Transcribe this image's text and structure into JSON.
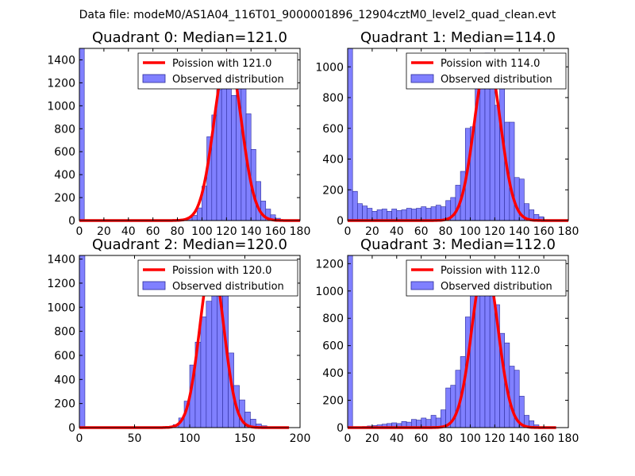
{
  "suptitle": "Data file: modeM0/AS1A04_116T01_9000001896_12904cztM0_level2_quad_clean.evt",
  "colors": {
    "bars": "#8080ff",
    "bar_edge": "#2a2a9a",
    "curve": "#ff0000"
  },
  "chart_data": [
    {
      "type": "bar",
      "title": "Quadrant 0: Median=121.0",
      "legend": [
        "Poission with 121.0",
        "Observed distribution"
      ],
      "legend_position": "top-right",
      "xlim": [
        0,
        180
      ],
      "ylim": [
        0,
        1500
      ],
      "xticks": [
        0,
        20,
        40,
        60,
        80,
        100,
        120,
        140,
        160,
        180
      ],
      "yticks": [
        0,
        200,
        400,
        600,
        800,
        1000,
        1200,
        1400
      ],
      "bin_width": 4,
      "bins": [
        [
          0,
          1500
        ],
        [
          88,
          25
        ],
        [
          92,
          45
        ],
        [
          96,
          110
        ],
        [
          100,
          300
        ],
        [
          104,
          730
        ],
        [
          108,
          920
        ],
        [
          112,
          1140
        ],
        [
          116,
          1210
        ],
        [
          120,
          1460
        ],
        [
          124,
          1090
        ],
        [
          128,
          1390
        ],
        [
          132,
          1170
        ],
        [
          136,
          930
        ],
        [
          140,
          620
        ],
        [
          144,
          340
        ],
        [
          148,
          170
        ],
        [
          152,
          100
        ],
        [
          156,
          50
        ],
        [
          160,
          20
        ]
      ],
      "poisson": {
        "lambda": 121.0,
        "peak": 1450,
        "x_range": [
          0,
          180
        ]
      }
    },
    {
      "type": "bar",
      "title": "Quadrant 1: Median=114.0",
      "legend": [
        "Poission with 114.0",
        "Observed distribution"
      ],
      "legend_position": "top-right",
      "xlim": [
        0,
        180
      ],
      "ylim": [
        0,
        1120
      ],
      "xticks": [
        0,
        20,
        40,
        60,
        80,
        100,
        120,
        140,
        160,
        180
      ],
      "yticks": [
        0,
        200,
        400,
        600,
        800,
        1000
      ],
      "bin_width": 4,
      "bins": [
        [
          0,
          1120
        ],
        [
          0,
          200
        ],
        [
          4,
          190
        ],
        [
          8,
          110
        ],
        [
          12,
          95
        ],
        [
          16,
          80
        ],
        [
          20,
          60
        ],
        [
          24,
          70
        ],
        [
          28,
          75
        ],
        [
          32,
          60
        ],
        [
          36,
          75
        ],
        [
          40,
          65
        ],
        [
          44,
          70
        ],
        [
          48,
          80
        ],
        [
          52,
          75
        ],
        [
          56,
          80
        ],
        [
          60,
          90
        ],
        [
          64,
          80
        ],
        [
          68,
          90
        ],
        [
          72,
          100
        ],
        [
          76,
          90
        ],
        [
          80,
          130
        ],
        [
          84,
          150
        ],
        [
          88,
          230
        ],
        [
          92,
          320
        ],
        [
          96,
          600
        ],
        [
          100,
          610
        ],
        [
          104,
          870
        ],
        [
          108,
          1000
        ],
        [
          112,
          1090
        ],
        [
          116,
          920
        ],
        [
          120,
          750
        ],
        [
          124,
          930
        ],
        [
          128,
          640
        ],
        [
          132,
          640
        ],
        [
          136,
          280
        ],
        [
          140,
          270
        ],
        [
          144,
          110
        ],
        [
          148,
          70
        ],
        [
          152,
          40
        ],
        [
          156,
          25
        ]
      ],
      "poisson": {
        "lambda": 114.0,
        "peak": 1050,
        "x_range": [
          0,
          180
        ]
      }
    },
    {
      "type": "bar",
      "title": "Quadrant 2: Median=120.0",
      "legend": [
        "Poission with 120.0",
        "Observed distribution"
      ],
      "legend_position": "top-right",
      "xlim": [
        0,
        200
      ],
      "ylim": [
        0,
        1430
      ],
      "xticks": [
        0,
        50,
        100,
        150,
        200
      ],
      "yticks": [
        0,
        200,
        400,
        600,
        800,
        1000,
        1200,
        1400
      ],
      "bin_width": 5,
      "bins": [
        [
          0,
          1430
        ],
        [
          80,
          10
        ],
        [
          85,
          25
        ],
        [
          90,
          80
        ],
        [
          95,
          220
        ],
        [
          100,
          520
        ],
        [
          105,
          710
        ],
        [
          110,
          920
        ],
        [
          115,
          1050
        ],
        [
          120,
          1340
        ],
        [
          125,
          1210
        ],
        [
          130,
          1140
        ],
        [
          135,
          620
        ],
        [
          140,
          350
        ],
        [
          145,
          230
        ],
        [
          150,
          130
        ],
        [
          155,
          70
        ],
        [
          160,
          30
        ],
        [
          165,
          15
        ]
      ],
      "poisson": {
        "lambda": 120.0,
        "peak": 1370,
        "x_range": [
          0,
          190
        ]
      }
    },
    {
      "type": "bar",
      "title": "Quadrant 3: Median=112.0",
      "legend": [
        "Poission with 112.0",
        "Observed distribution"
      ],
      "legend_position": "top-right",
      "xlim": [
        0,
        180
      ],
      "ylim": [
        0,
        1260
      ],
      "xticks": [
        0,
        20,
        40,
        60,
        80,
        100,
        120,
        140,
        160,
        180
      ],
      "yticks": [
        0,
        200,
        400,
        600,
        800,
        1000,
        1200
      ],
      "bin_width": 4,
      "bins": [
        [
          0,
          1260
        ],
        [
          8,
          5
        ],
        [
          12,
          8
        ],
        [
          16,
          12
        ],
        [
          20,
          15
        ],
        [
          24,
          20
        ],
        [
          28,
          25
        ],
        [
          32,
          30
        ],
        [
          36,
          35
        ],
        [
          40,
          30
        ],
        [
          44,
          45
        ],
        [
          48,
          40
        ],
        [
          52,
          60
        ],
        [
          56,
          55
        ],
        [
          60,
          70
        ],
        [
          64,
          60
        ],
        [
          68,
          90
        ],
        [
          72,
          70
        ],
        [
          76,
          130
        ],
        [
          80,
          290
        ],
        [
          84,
          310
        ],
        [
          88,
          420
        ],
        [
          92,
          520
        ],
        [
          96,
          810
        ],
        [
          100,
          1000
        ],
        [
          104,
          1120
        ],
        [
          108,
          1210
        ],
        [
          112,
          1030
        ],
        [
          116,
          1160
        ],
        [
          120,
          900
        ],
        [
          124,
          690
        ],
        [
          128,
          620
        ],
        [
          132,
          450
        ],
        [
          136,
          420
        ],
        [
          140,
          230
        ],
        [
          144,
          90
        ],
        [
          148,
          50
        ],
        [
          152,
          20
        ]
      ],
      "poisson": {
        "lambda": 112.0,
        "peak": 1210,
        "x_range": [
          0,
          170
        ]
      }
    }
  ]
}
